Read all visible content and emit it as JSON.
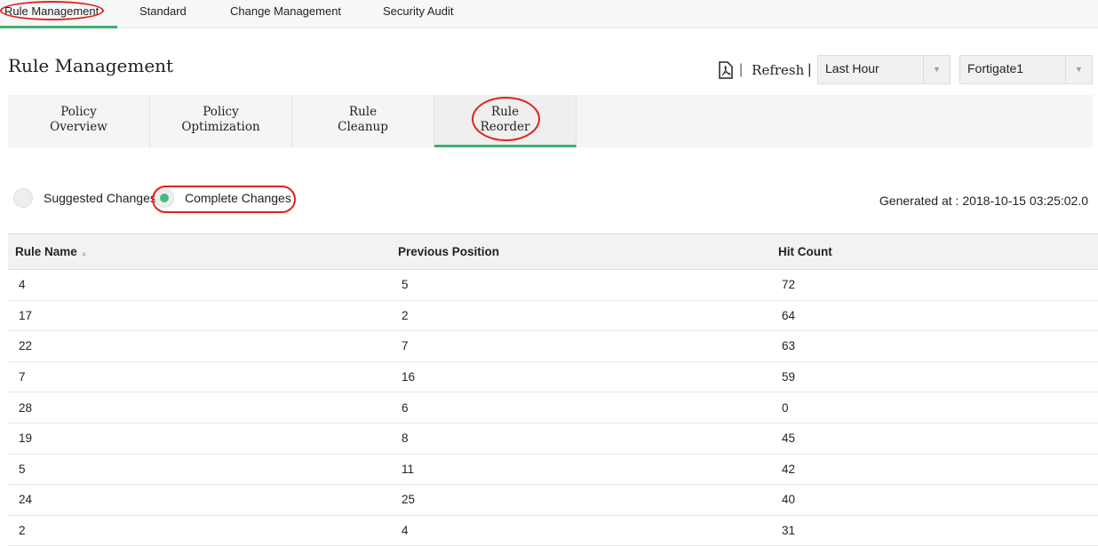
{
  "topnav": {
    "tabs": [
      "Rule Management",
      "Standard",
      "Change Management",
      "Security Audit"
    ],
    "active": 0
  },
  "page_title": "Rule Management",
  "toolbar": {
    "pdf_icon": "pdf-icon",
    "refresh_label": "Refresh",
    "time_range": "Last Hour",
    "device": "Fortigate1"
  },
  "subtabs": [
    {
      "l1": "Policy",
      "l2": "Overview"
    },
    {
      "l1": "Policy",
      "l2": "Optimization"
    },
    {
      "l1": "Rule",
      "l2": "Cleanup"
    },
    {
      "l1": "Rule",
      "l2": "Reorder"
    }
  ],
  "active_subtab": 3,
  "options": {
    "suggested": "Suggested Changes",
    "complete": "Complete Changes",
    "selected": "complete"
  },
  "generated_at": "Generated at : 2018-10-15 03:25:02.0",
  "table": {
    "headers": [
      "Rule Name",
      "Previous Position",
      "Hit Count"
    ],
    "rows": [
      [
        "4",
        "5",
        "72"
      ],
      [
        "17",
        "2",
        "64"
      ],
      [
        "22",
        "7",
        "63"
      ],
      [
        "7",
        "16",
        "59"
      ],
      [
        "28",
        "6",
        "0"
      ],
      [
        "19",
        "8",
        "45"
      ],
      [
        "5",
        "11",
        "42"
      ],
      [
        "24",
        "25",
        "40"
      ],
      [
        "2",
        "4",
        "31"
      ]
    ]
  },
  "colors": {
    "accent": "#3fae6e",
    "highlight": "#e02020"
  }
}
